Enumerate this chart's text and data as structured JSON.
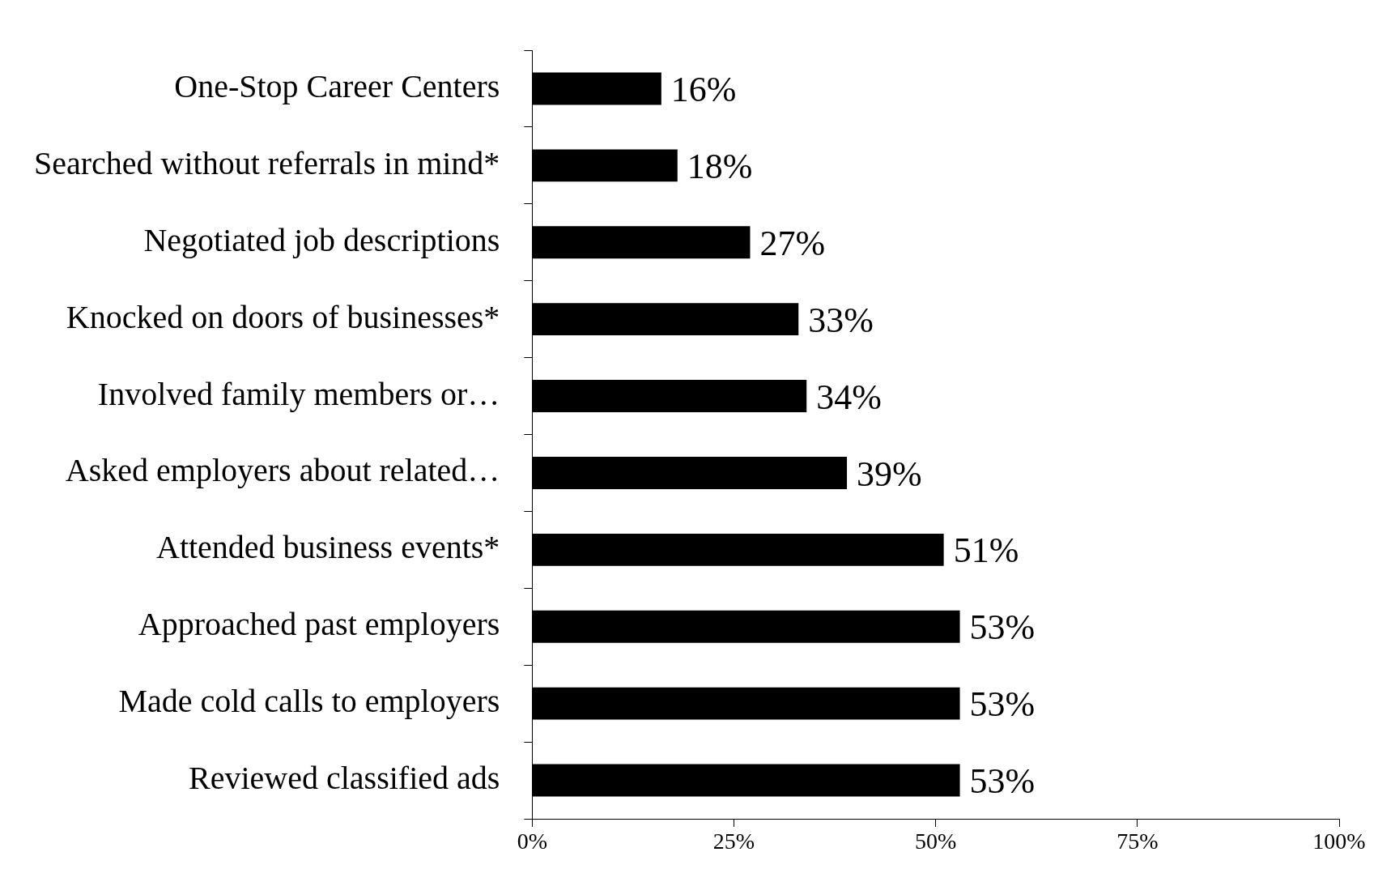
{
  "chart_data": {
    "type": "bar",
    "orientation": "horizontal",
    "categories": [
      "One-Stop Career Centers",
      "Searched without referrals in mind*",
      "Negotiated job descriptions",
      "Knocked on doors of businesses*",
      "Involved family members or…",
      "Asked employers about related…",
      "Attended business events*",
      "Approached past employers",
      "Made cold calls to employers",
      "Reviewed classified ads"
    ],
    "values": [
      16,
      18,
      27,
      33,
      34,
      39,
      51,
      53,
      53,
      53
    ],
    "value_labels": [
      "16%",
      "18%",
      "27%",
      "33%",
      "34%",
      "39%",
      "51%",
      "53%",
      "53%",
      "53%"
    ],
    "color": "#000000",
    "xlim": [
      0,
      100
    ],
    "xticks": [
      {
        "value": 0,
        "label": "0%"
      },
      {
        "value": 25,
        "label": "25%"
      },
      {
        "value": 50,
        "label": "50%"
      },
      {
        "value": 75,
        "label": "75%"
      },
      {
        "value": 100,
        "label": "100%"
      }
    ],
    "grid": false,
    "legend": false
  }
}
